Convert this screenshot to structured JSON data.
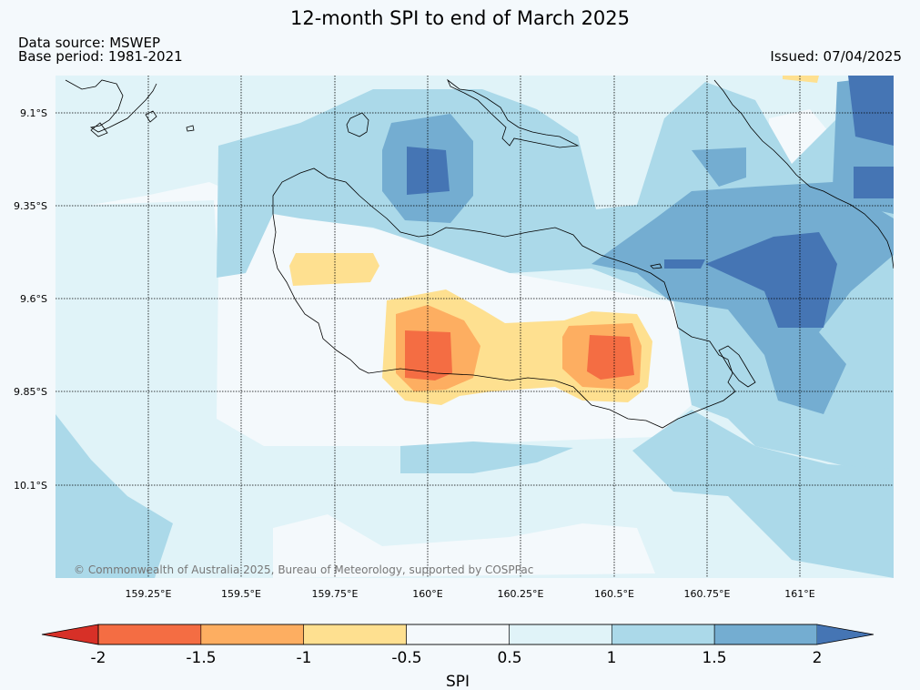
{
  "title": "12-month SPI to end of March 2025",
  "data_source": "Data source: MSWEP",
  "base_period": "Base period: 1981-2021",
  "issued": "Issued: 07/04/2025",
  "copyright": "© Commonwealth of Australia 2025, Bureau of Meteorology, supported by COSPPac",
  "map": {
    "lat_labels": [
      "9.1°S",
      "9.35°S",
      "9.6°S",
      "9.85°S",
      "10.1°S"
    ],
    "lon_labels": [
      "159.25°E",
      "159.5°E",
      "159.75°E",
      "160°E",
      "160.25°E",
      "160.5°E",
      "160.75°E",
      "161°E"
    ]
  },
  "colorbar": {
    "label": "SPI",
    "ticks": [
      "-2",
      "-1.5",
      "-1",
      "-0.5",
      "0.5",
      "1",
      "1.5",
      "2"
    ],
    "colors": [
      "#d73027",
      "#f46d43",
      "#fdae61",
      "#fee090",
      "#f4f9fc",
      "#e0f3f8",
      "#abd9e9",
      "#74add1",
      "#4575b4"
    ]
  }
}
